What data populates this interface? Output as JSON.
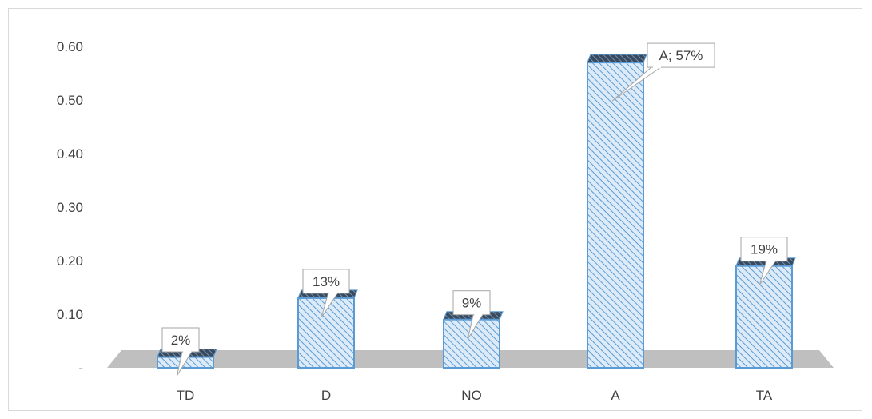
{
  "chart_data": {
    "type": "bar",
    "categories": [
      "TD",
      "D",
      "NO",
      "A",
      "TA"
    ],
    "values": [
      0.02,
      0.13,
      0.09,
      0.57,
      0.19
    ],
    "data_labels": [
      "2%",
      "13%",
      "9%",
      "A; 57%",
      "19%"
    ],
    "y_ticks": [
      {
        "value": 0,
        "label": "-"
      },
      {
        "value": 0.1,
        "label": "0.10"
      },
      {
        "value": 0.2,
        "label": "0.20"
      },
      {
        "value": 0.3,
        "label": "0.30"
      },
      {
        "value": 0.4,
        "label": "0.40"
      },
      {
        "value": 0.5,
        "label": "0.50"
      },
      {
        "value": 0.6,
        "label": "0.60"
      }
    ],
    "ylim": [
      0,
      0.6
    ],
    "grid": false,
    "legend": "none",
    "style": "3d-column",
    "colors": {
      "bar_fill": "#dcebf7",
      "bar_hatch": "#5b9bd5",
      "bar_edge": "#5b9bd5",
      "bar_side": "#2f3a46",
      "floor": "#bfbfbf"
    }
  }
}
